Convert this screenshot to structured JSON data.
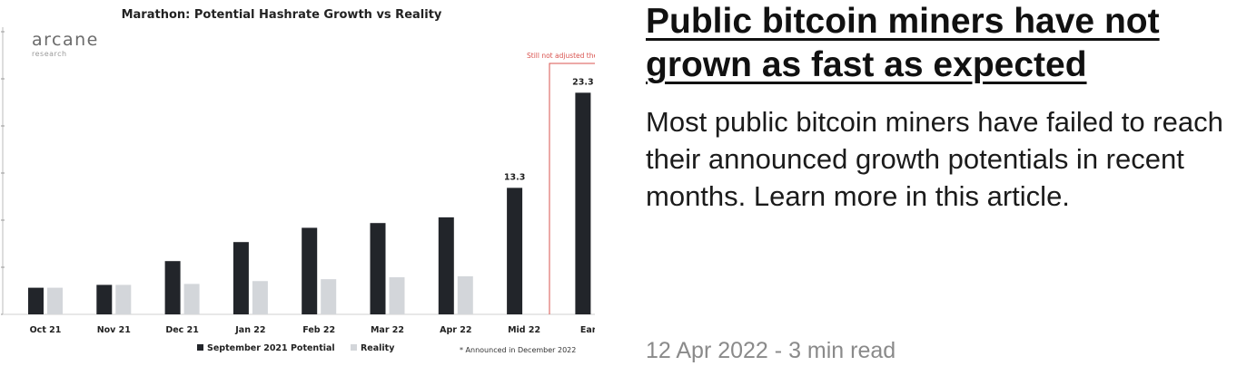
{
  "article": {
    "title": "Public bitcoin miners have not grown as fast as expected",
    "description": "Most public bitcoin miners have failed to reach their announced growth potentials in recent months. Learn more in this article.",
    "date": "12 Apr 2022",
    "separator": " - ",
    "read_time": "3 min read"
  },
  "thumbnail": {
    "brand": "arcane",
    "brand_sub": "research",
    "note": "Still not adjusted the",
    "footnote": "* Announced in December 2022",
    "colors": {
      "potential": "#22252a",
      "reality": "#d3d6da",
      "note": "#d9534f",
      "axis": "#bbbbbb"
    }
  },
  "chart_data": {
    "type": "bar",
    "title": "Marathon: Potential Hashrate Growth vs Reality",
    "categories": [
      "Oct 21",
      "Nov 21",
      "Dec 21",
      "Jan 22",
      "Feb 22",
      "Mar 22",
      "Apr 22",
      "Mid 22",
      "Early"
    ],
    "series": [
      {
        "name": "September 2021 Potential",
        "values": [
          2.8,
          3.1,
          5.6,
          7.6,
          9.1,
          9.6,
          10.2,
          13.3,
          23.3
        ]
      },
      {
        "name": "Reality",
        "values": [
          2.8,
          3.1,
          3.2,
          3.5,
          3.7,
          3.9,
          4.0,
          null,
          null
        ]
      }
    ],
    "data_labels": {
      "Mid 22": "13.3",
      "Early": "23.3"
    },
    "ylim": [
      0,
      24
    ],
    "grid": false,
    "legend_position": "bottom"
  }
}
